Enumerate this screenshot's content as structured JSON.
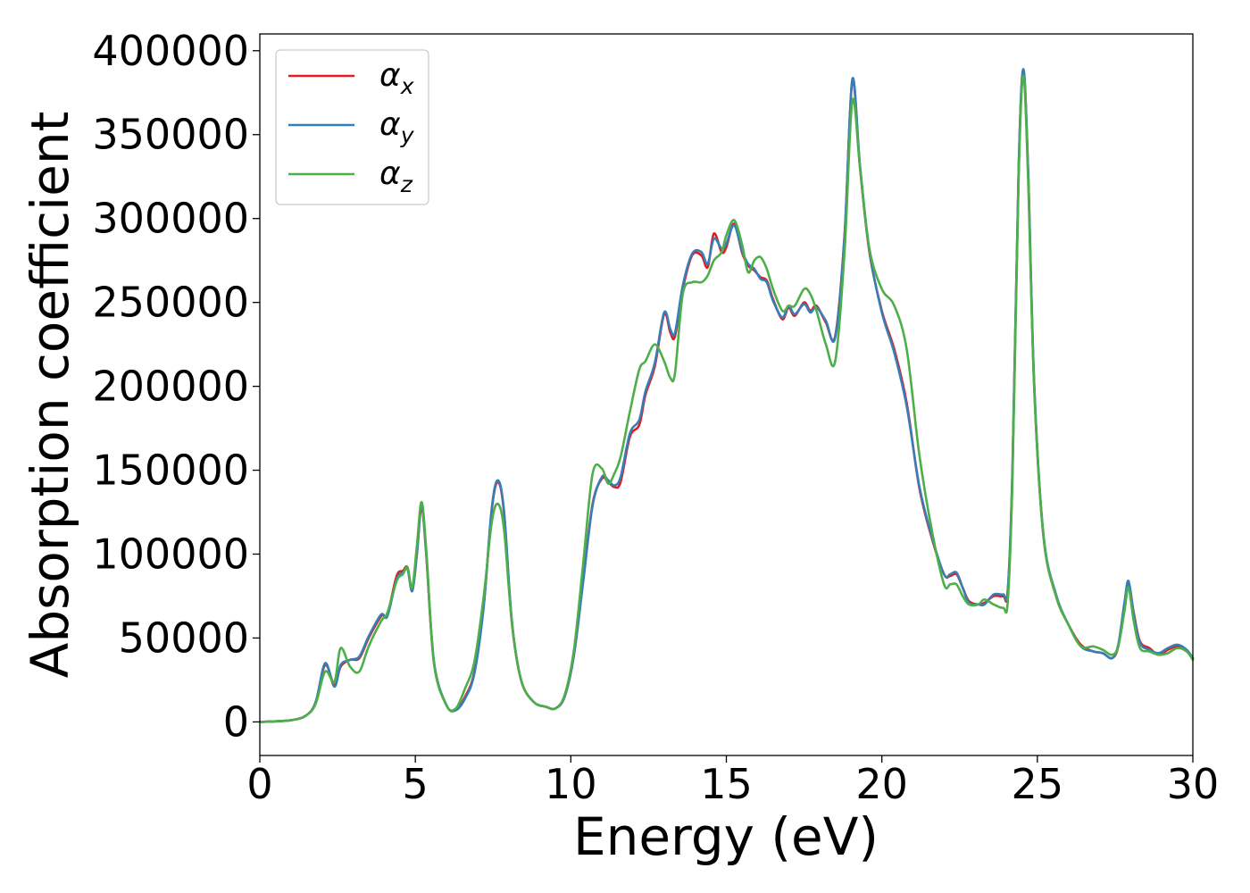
{
  "chart_data": {
    "type": "line",
    "title": "",
    "xlabel": "Energy (eV)",
    "ylabel": "Absorption coefficient",
    "xlim": [
      0,
      30
    ],
    "ylim": [
      -20000,
      410000
    ],
    "xticks": [
      0,
      5,
      10,
      15,
      20,
      25,
      30
    ],
    "yticks": [
      0,
      50000,
      100000,
      150000,
      200000,
      250000,
      300000,
      350000,
      400000
    ],
    "grid": false,
    "legend_position": "top-left",
    "series": [
      {
        "name": "α",
        "sub": "x",
        "color": "#e41a1c",
        "x": [
          0,
          1,
          1.5,
          1.8,
          2.1,
          2.4,
          2.6,
          2.9,
          3.2,
          3.5,
          3.9,
          4.1,
          4.4,
          4.6,
          4.75,
          4.9,
          5.05,
          5.2,
          5.35,
          5.6,
          6.0,
          6.3,
          6.6,
          6.9,
          7.2,
          7.45,
          7.65,
          7.85,
          8.1,
          8.4,
          8.8,
          9.2,
          9.5,
          9.8,
          10.1,
          10.4,
          10.7,
          11.0,
          11.2,
          11.4,
          11.6,
          11.9,
          12.2,
          12.4,
          12.7,
          13.0,
          13.2,
          13.35,
          13.6,
          13.9,
          14.2,
          14.4,
          14.6,
          14.85,
          15.0,
          15.25,
          15.5,
          15.7,
          15.9,
          16.1,
          16.3,
          16.5,
          16.8,
          17.0,
          17.2,
          17.5,
          17.7,
          17.9,
          18.2,
          18.5,
          18.8,
          19.05,
          19.3,
          19.6,
          20.0,
          20.4,
          20.8,
          21.2,
          21.6,
          22.0,
          22.2,
          22.4,
          22.6,
          22.8,
          23.1,
          23.3,
          23.6,
          23.9,
          24.05,
          24.2,
          24.4,
          24.55,
          24.7,
          24.9,
          25.2,
          25.6,
          26.0,
          26.4,
          26.8,
          27.1,
          27.4,
          27.6,
          27.8,
          27.93,
          28.1,
          28.3,
          28.6,
          28.9,
          29.2,
          29.5,
          29.8,
          30.0
        ],
        "values": [
          0,
          1000,
          4000,
          12000,
          34000,
          22000,
          33000,
          37000,
          38000,
          50000,
          63000,
          64000,
          87000,
          90000,
          92000,
          78000,
          100000,
          128000,
          100000,
          35000,
          10000,
          7000,
          15000,
          30000,
          70000,
          125000,
          143000,
          125000,
          60000,
          25000,
          12000,
          9000,
          8000,
          15000,
          40000,
          85000,
          130000,
          145000,
          143000,
          140000,
          143000,
          170000,
          177000,
          195000,
          212000,
          243000,
          232000,
          230000,
          258000,
          278000,
          278000,
          271000,
          291000,
          280000,
          283000,
          297000,
          280000,
          272000,
          269000,
          265000,
          263000,
          252000,
          240000,
          247000,
          242000,
          250000,
          245000,
          248000,
          238000,
          230000,
          290000,
          382000,
          330000,
          280000,
          245000,
          222000,
          190000,
          140000,
          110000,
          88000,
          87000,
          88000,
          80000,
          72000,
          70000,
          71000,
          75000,
          75000,
          78000,
          150000,
          330000,
          388000,
          330000,
          200000,
          110000,
          75000,
          58000,
          46000,
          42000,
          41000,
          38000,
          45000,
          70000,
          83000,
          65000,
          48000,
          44000,
          40000,
          43000,
          45000,
          42000,
          38000
        ]
      },
      {
        "name": "α",
        "sub": "y",
        "color": "#377eb8",
        "x": [
          0,
          1,
          1.5,
          1.8,
          2.1,
          2.4,
          2.6,
          2.9,
          3.2,
          3.5,
          3.9,
          4.1,
          4.4,
          4.6,
          4.75,
          4.9,
          5.05,
          5.2,
          5.35,
          5.6,
          6.0,
          6.3,
          6.6,
          6.9,
          7.2,
          7.45,
          7.65,
          7.85,
          8.1,
          8.4,
          8.8,
          9.2,
          9.5,
          9.8,
          10.1,
          10.4,
          10.7,
          11.0,
          11.2,
          11.4,
          11.6,
          11.9,
          12.2,
          12.4,
          12.7,
          13.0,
          13.2,
          13.35,
          13.6,
          13.9,
          14.2,
          14.4,
          14.6,
          14.85,
          15.0,
          15.25,
          15.5,
          15.7,
          15.9,
          16.1,
          16.3,
          16.5,
          16.8,
          17.0,
          17.2,
          17.5,
          17.7,
          17.9,
          18.2,
          18.5,
          18.8,
          19.05,
          19.3,
          19.6,
          20.0,
          20.4,
          20.8,
          21.2,
          21.6,
          22.0,
          22.2,
          22.4,
          22.6,
          22.8,
          23.1,
          23.3,
          23.6,
          23.9,
          24.05,
          24.2,
          24.4,
          24.55,
          24.7,
          24.9,
          25.2,
          25.6,
          26.0,
          26.4,
          26.8,
          27.1,
          27.4,
          27.6,
          27.8,
          27.93,
          28.1,
          28.3,
          28.6,
          28.9,
          29.2,
          29.5,
          29.8,
          30.0
        ],
        "values": [
          0,
          1000,
          4000,
          12000,
          35000,
          21000,
          34000,
          37000,
          39000,
          51000,
          64000,
          63000,
          85000,
          89000,
          91000,
          78000,
          100000,
          129000,
          101000,
          36000,
          10000,
          7000,
          14000,
          29000,
          69000,
          126000,
          144000,
          126000,
          61000,
          25000,
          12000,
          9000,
          8000,
          15000,
          40000,
          84000,
          129000,
          146000,
          144000,
          141000,
          146000,
          172000,
          180000,
          197000,
          214000,
          244000,
          234000,
          232000,
          260000,
          279000,
          280000,
          273000,
          288000,
          282000,
          285000,
          296000,
          281000,
          273000,
          270000,
          264000,
          262000,
          251000,
          241000,
          248000,
          243000,
          249000,
          244000,
          247000,
          239000,
          229000,
          289000,
          383000,
          331000,
          281000,
          244000,
          220000,
          188000,
          141000,
          111000,
          88000,
          88000,
          89000,
          80000,
          71000,
          70000,
          70000,
          76000,
          76000,
          79000,
          151000,
          331000,
          389000,
          331000,
          201000,
          111000,
          76000,
          58000,
          45000,
          42000,
          41000,
          38000,
          46000,
          71000,
          84000,
          64000,
          47000,
          43000,
          41000,
          44000,
          46000,
          43000,
          38000
        ]
      },
      {
        "name": "α",
        "sub": "z",
        "color": "#4daf4a",
        "x": [
          0,
          1,
          1.5,
          1.8,
          2.1,
          2.4,
          2.6,
          2.9,
          3.2,
          3.5,
          3.9,
          4.1,
          4.4,
          4.6,
          4.75,
          4.9,
          5.05,
          5.2,
          5.35,
          5.6,
          6.0,
          6.3,
          6.6,
          6.9,
          7.2,
          7.45,
          7.65,
          7.85,
          8.1,
          8.4,
          8.8,
          9.2,
          9.5,
          9.8,
          10.1,
          10.4,
          10.7,
          11.0,
          11.2,
          11.4,
          11.6,
          11.9,
          12.2,
          12.4,
          12.7,
          13.0,
          13.2,
          13.35,
          13.6,
          13.9,
          14.2,
          14.4,
          14.6,
          14.85,
          15.0,
          15.25,
          15.5,
          15.7,
          15.9,
          16.1,
          16.3,
          16.5,
          16.8,
          17.0,
          17.2,
          17.5,
          17.7,
          17.9,
          18.2,
          18.5,
          18.8,
          19.05,
          19.3,
          19.6,
          20.0,
          20.4,
          20.8,
          21.2,
          21.6,
          22.0,
          22.2,
          22.4,
          22.6,
          22.8,
          23.1,
          23.3,
          23.6,
          23.9,
          24.05,
          24.2,
          24.4,
          24.55,
          24.7,
          24.9,
          25.2,
          25.6,
          26.0,
          26.4,
          26.8,
          27.1,
          27.4,
          27.6,
          27.8,
          27.93,
          28.1,
          28.3,
          28.6,
          28.9,
          29.2,
          29.5,
          29.8,
          30.0
        ],
        "values": [
          0,
          1000,
          4000,
          11000,
          30000,
          24000,
          44000,
          33000,
          30000,
          45000,
          60000,
          65000,
          84000,
          88000,
          92000,
          80000,
          105000,
          131000,
          103000,
          35000,
          10000,
          8000,
          20000,
          36000,
          75000,
          118000,
          130000,
          115000,
          60000,
          25000,
          12000,
          9000,
          8000,
          16000,
          43000,
          95000,
          148000,
          151000,
          142000,
          148000,
          158000,
          185000,
          210000,
          215000,
          225000,
          215000,
          205000,
          208000,
          255000,
          262000,
          262000,
          266000,
          275000,
          280000,
          290000,
          299000,
          285000,
          268000,
          275000,
          277000,
          270000,
          258000,
          245000,
          248000,
          248000,
          258000,
          255000,
          245000,
          225000,
          215000,
          280000,
          370000,
          330000,
          282000,
          258000,
          248000,
          222000,
          160000,
          115000,
          82000,
          82000,
          82000,
          75000,
          70000,
          70000,
          73000,
          70000,
          68000,
          72000,
          145000,
          325000,
          385000,
          325000,
          198000,
          110000,
          75000,
          58000,
          45000,
          45000,
          43000,
          40000,
          45000,
          66000,
          80000,
          60000,
          44000,
          42000,
          40000,
          41000,
          44000,
          42000,
          37000
        ]
      }
    ]
  }
}
